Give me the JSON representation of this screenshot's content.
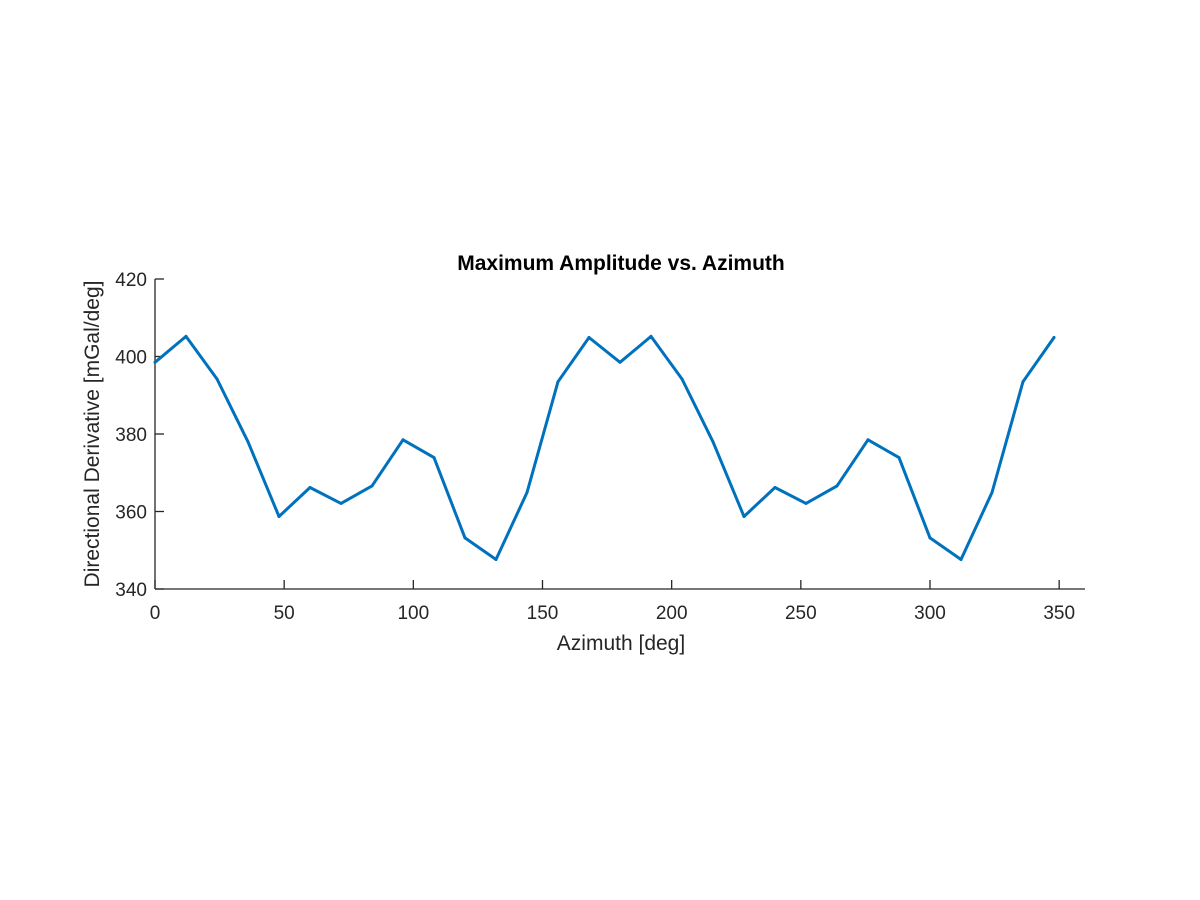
{
  "chart_data": {
    "type": "line",
    "title": "Maximum Amplitude vs. Azimuth",
    "xlabel": "Azimuth [deg]",
    "ylabel": "Directional Derivative [mGal/deg]",
    "xlim": [
      0,
      360
    ],
    "ylim": [
      340,
      420
    ],
    "xticks": [
      0,
      50,
      100,
      150,
      200,
      250,
      300,
      350
    ],
    "yticks": [
      340,
      360,
      380,
      400,
      420
    ],
    "grid": false,
    "series": [
      {
        "color": "#0072BD",
        "x": [
          0,
          12,
          24,
          36,
          48,
          60,
          72,
          84,
          96,
          108,
          120,
          132,
          144,
          156,
          168,
          180,
          192,
          204,
          216,
          228,
          240,
          252,
          264,
          276,
          288,
          300,
          312,
          324,
          336,
          348
        ],
        "y": [
          398.5,
          405.2,
          394.2,
          378,
          358.7,
          366.2,
          362.1,
          366.6,
          378.5,
          373.9,
          353.2,
          347.6,
          364.9,
          393.5,
          404.9,
          398.5,
          405.2,
          394.2,
          378,
          358.7,
          366.2,
          362.1,
          366.6,
          378.5,
          373.9,
          353.2,
          347.6,
          364.9,
          393.5,
          404.9
        ]
      }
    ]
  }
}
